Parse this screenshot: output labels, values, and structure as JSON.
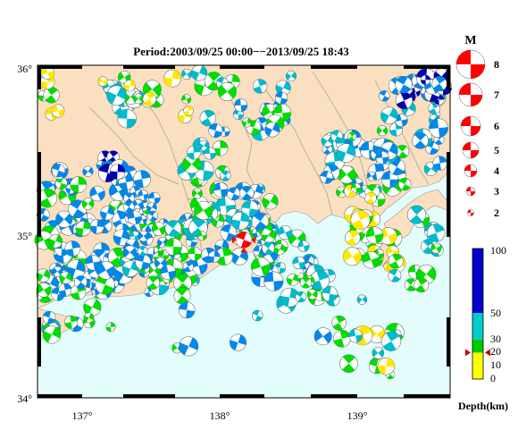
{
  "title": "Period:2003/09/25 00:00−−2013/09/25 18:43",
  "map": {
    "lon_range": [
      136.7,
      139.7
    ],
    "lat_range": [
      34.0,
      36.0
    ],
    "lon_ticks": [
      {
        "value": 137,
        "label": "137°"
      },
      {
        "value": 138,
        "label": "138°"
      },
      {
        "value": 139,
        "label": "139°"
      }
    ],
    "lat_ticks": [
      {
        "value": 36,
        "label": "36°"
      },
      {
        "value": 35,
        "label": "35°"
      },
      {
        "value": 34,
        "label": "34°"
      }
    ],
    "colors": {
      "sea": "#e3fdfd",
      "land": "#fae0c0",
      "frame": "#000000"
    }
  },
  "magnitude_legend": {
    "title": "M",
    "levels": [
      "8",
      "7",
      "6",
      "5",
      "4",
      "3",
      "2"
    ],
    "color": "#ff0000"
  },
  "depth_legend": {
    "title": "Depth(km)",
    "ticks": [
      "100",
      "50",
      "30",
      "20",
      "10",
      "0"
    ],
    "bands": [
      {
        "from": 0,
        "to": 10,
        "color": "#ffff00"
      },
      {
        "from": 10,
        "to": 20,
        "color": "#ffff00"
      },
      {
        "from": 20,
        "to": 30,
        "color": "#00cc00"
      },
      {
        "from": 30,
        "to": 50,
        "color": "#00cccc"
      },
      {
        "from": 50,
        "to": 100,
        "color": "#0000cc"
      }
    ],
    "marker_depth": 20,
    "marker_color": "#cc0000"
  },
  "highlight_event": {
    "lon": 138.2,
    "lat": 34.95,
    "color": "#ff0000"
  },
  "depth_colors": {
    "shallow": "#ffe800",
    "mid": "#00dd00",
    "deep": "#00bbcc",
    "deeper": "#0088ee",
    "deepest": "#0000aa"
  }
}
